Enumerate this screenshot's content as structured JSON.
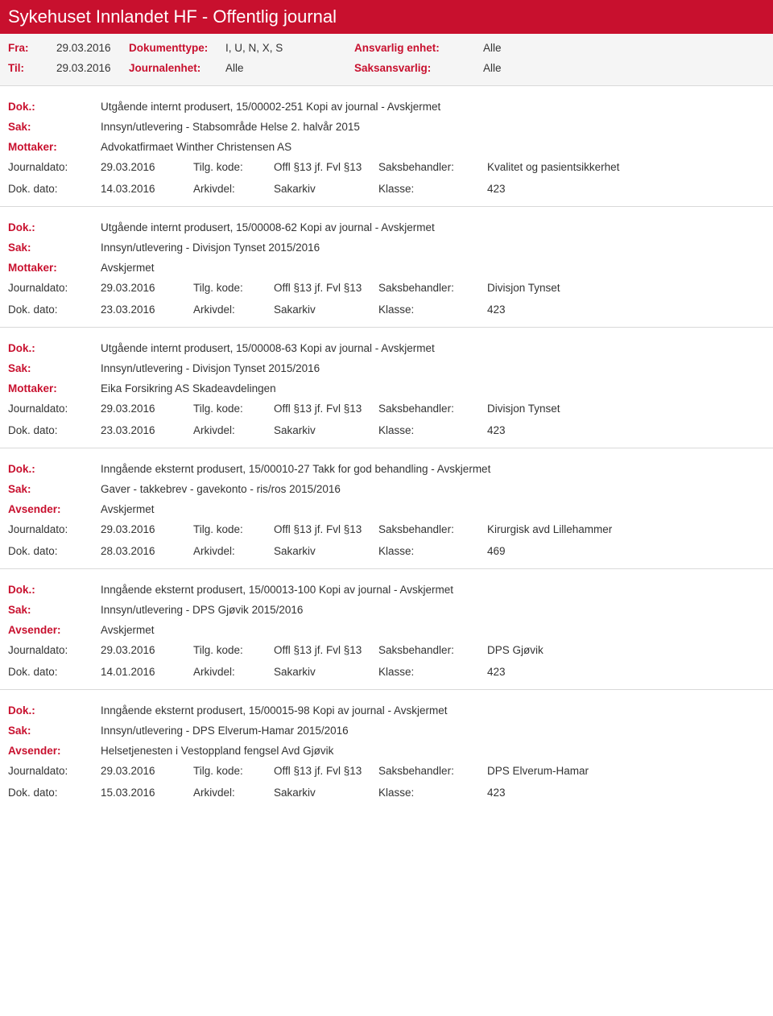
{
  "header": {
    "title": "Sykehuset Innlandet HF - Offentlig journal"
  },
  "filters": {
    "fra_label": "Fra:",
    "fra_val": "29.03.2016",
    "til_label": "Til:",
    "til_val": "29.03.2016",
    "doktype_label": "Dokumenttype:",
    "doktype_val": "I, U, N, X, S",
    "journalenhet_label": "Journalenhet:",
    "journalenhet_val": "Alle",
    "ansvarlig_label": "Ansvarlig enhet:",
    "ansvarlig_val": "Alle",
    "saksansvarlig_label": "Saksansvarlig:",
    "saksansvarlig_val": "Alle"
  },
  "labels": {
    "dok": "Dok.:",
    "sak": "Sak:",
    "mottaker": "Mottaker:",
    "avsender": "Avsender:",
    "journaldato": "Journaldato:",
    "dokdato": "Dok. dato:",
    "tilgkode": "Tilg. kode:",
    "arkivdel": "Arkivdel:",
    "saksbehandler": "Saksbehandler:",
    "klasse": "Klasse:"
  },
  "entries": [
    {
      "dok": "Utgående internt produsert, 15/00002-251 Kopi av journal - Avskjermet",
      "sak": "Innsyn/utlevering - Stabsområde Helse 2. halvår 2015",
      "party_label": "Mottaker:",
      "party_val": "Advokatfirmaet Winther Christensen AS",
      "journaldato": "29.03.2016",
      "tilgkode": "Offl §13 jf. Fvl §13",
      "saksbehandler": "Kvalitet og pasientsikkerhet",
      "dokdato": "14.03.2016",
      "arkivdel": "Sakarkiv",
      "klasse": "423"
    },
    {
      "dok": "Utgående internt produsert, 15/00008-62 Kopi av journal - Avskjermet",
      "sak": "Innsyn/utlevering - Divisjon Tynset 2015/2016",
      "party_label": "Mottaker:",
      "party_val": "Avskjermet",
      "journaldato": "29.03.2016",
      "tilgkode": "Offl §13 jf. Fvl §13",
      "saksbehandler": "Divisjon Tynset",
      "dokdato": "23.03.2016",
      "arkivdel": "Sakarkiv",
      "klasse": "423"
    },
    {
      "dok": "Utgående internt produsert, 15/00008-63 Kopi av journal - Avskjermet",
      "sak": "Innsyn/utlevering - Divisjon Tynset 2015/2016",
      "party_label": "Mottaker:",
      "party_val": "Eika Forsikring AS Skadeavdelingen",
      "journaldato": "29.03.2016",
      "tilgkode": "Offl §13 jf. Fvl §13",
      "saksbehandler": "Divisjon Tynset",
      "dokdato": "23.03.2016",
      "arkivdel": "Sakarkiv",
      "klasse": "423"
    },
    {
      "dok": "Inngående eksternt produsert, 15/00010-27 Takk for god behandling - Avskjermet",
      "sak": "Gaver - takkebrev - gavekonto - ris/ros 2015/2016",
      "party_label": "Avsender:",
      "party_val": "Avskjermet",
      "journaldato": "29.03.2016",
      "tilgkode": "Offl §13 jf. Fvl §13",
      "saksbehandler": "Kirurgisk avd Lillehammer",
      "dokdato": "28.03.2016",
      "arkivdel": "Sakarkiv",
      "klasse": "469"
    },
    {
      "dok": "Inngående eksternt produsert, 15/00013-100 Kopi av journal - Avskjermet",
      "sak": "Innsyn/utlevering - DPS Gjøvik 2015/2016",
      "party_label": "Avsender:",
      "party_val": "Avskjermet",
      "journaldato": "29.03.2016",
      "tilgkode": "Offl §13 jf. Fvl §13",
      "saksbehandler": "DPS Gjøvik",
      "dokdato": "14.01.2016",
      "arkivdel": "Sakarkiv",
      "klasse": "423"
    },
    {
      "dok": "Inngående eksternt produsert, 15/00015-98 Kopi av journal - Avskjermet",
      "sak": "Innsyn/utlevering - DPS Elverum-Hamar 2015/2016",
      "party_label": "Avsender:",
      "party_val": "Helsetjenesten i Vestoppland fengsel Avd Gjøvik",
      "journaldato": "29.03.2016",
      "tilgkode": "Offl §13 jf. Fvl §13",
      "saksbehandler": "DPS Elverum-Hamar",
      "dokdato": "15.03.2016",
      "arkivdel": "Sakarkiv",
      "klasse": "423"
    }
  ]
}
